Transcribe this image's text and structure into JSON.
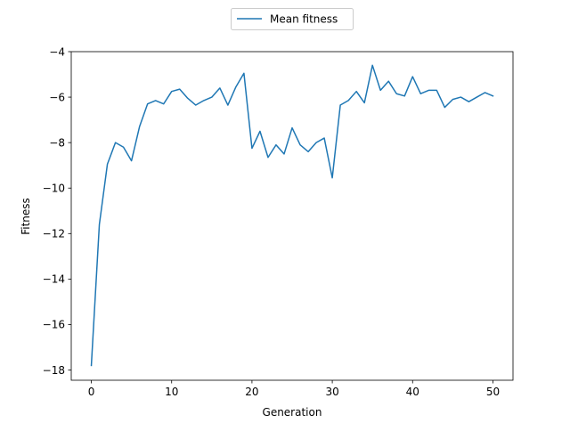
{
  "chart_data": {
    "type": "line",
    "title": "",
    "xlabel": "Generation",
    "ylabel": "Fitness",
    "xlim": [
      -2.5,
      52.5
    ],
    "ylim": [
      -18.45,
      -4.0
    ],
    "xticks": [
      0,
      10,
      20,
      30,
      40,
      50
    ],
    "yticks": [
      -18,
      -16,
      -14,
      -12,
      -10,
      -8,
      -6,
      -4
    ],
    "ytick_labels": [
      "−18",
      "−16",
      "−14",
      "−12",
      "−10",
      "−8",
      "−6",
      "−4"
    ],
    "grid": false,
    "legend": {
      "position": "upper-center-outside"
    },
    "colors": {
      "series": "#1f77b4",
      "axes": "#000000",
      "legend_border": "#cccccc"
    },
    "series": [
      {
        "name": "Mean fitness",
        "x": [
          0,
          1,
          2,
          3,
          4,
          5,
          6,
          7,
          8,
          9,
          10,
          11,
          12,
          13,
          14,
          15,
          16,
          17,
          18,
          19,
          20,
          21,
          22,
          23,
          24,
          25,
          26,
          27,
          28,
          29,
          30,
          31,
          32,
          33,
          34,
          35,
          36,
          37,
          38,
          39,
          40,
          41,
          42,
          43,
          44,
          45,
          46,
          47,
          48,
          49,
          50
        ],
        "y": [
          -17.8,
          -11.6,
          -8.95,
          -8.0,
          -8.2,
          -8.8,
          -7.3,
          -6.3,
          -6.15,
          -6.3,
          -5.75,
          -5.65,
          -6.05,
          -6.35,
          -6.15,
          -6.0,
          -5.6,
          -6.35,
          -5.55,
          -4.95,
          -8.25,
          -7.5,
          -8.65,
          -8.1,
          -8.5,
          -7.35,
          -8.1,
          -8.4,
          -8.0,
          -7.8,
          -9.55,
          -6.35,
          -6.15,
          -5.75,
          -6.25,
          -4.6,
          -5.7,
          -5.3,
          -5.85,
          -5.95,
          -5.1,
          -5.85,
          -5.7,
          -5.7,
          -6.45,
          -6.1,
          -6.0,
          -6.2,
          -6.0,
          -5.8,
          -5.95
        ]
      }
    ]
  }
}
